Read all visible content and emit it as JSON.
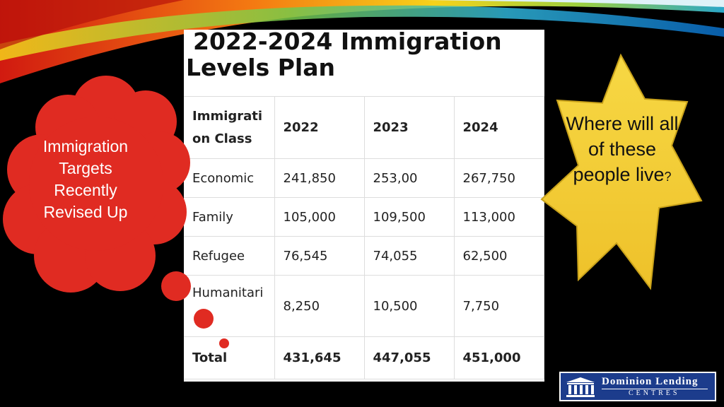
{
  "title": {
    "line1": "2022-2024 Immigration",
    "line2": "Levels Plan"
  },
  "table": {
    "header": {
      "class_label": "Immigrati on Class",
      "years": [
        "2022",
        "2023",
        "2024"
      ]
    },
    "rows": [
      {
        "label": "Economic",
        "values": [
          "241,850",
          "253,00",
          "267,750"
        ]
      },
      {
        "label": "Family",
        "values": [
          "105,000",
          "109,500",
          "113,000"
        ]
      },
      {
        "label": "Refugee",
        "values": [
          "76,545",
          "74,055",
          "62,500"
        ]
      },
      {
        "label": "Humanitari",
        "values": [
          "8,250",
          "10,500",
          "7,750"
        ]
      }
    ],
    "total": {
      "label": "Total",
      "values": [
        "431,645",
        "447,055",
        "451,000"
      ]
    }
  },
  "bubble": {
    "text": "Immigration Targets Recently Revised Up",
    "color": "#e02b22"
  },
  "star": {
    "text_main": "Where will all of these people live",
    "text_mark": "?",
    "color": "#f2cc2e"
  },
  "logo": {
    "name": "Dominion Lending",
    "sub": "CENTRES",
    "color": "#1c3c8c"
  }
}
